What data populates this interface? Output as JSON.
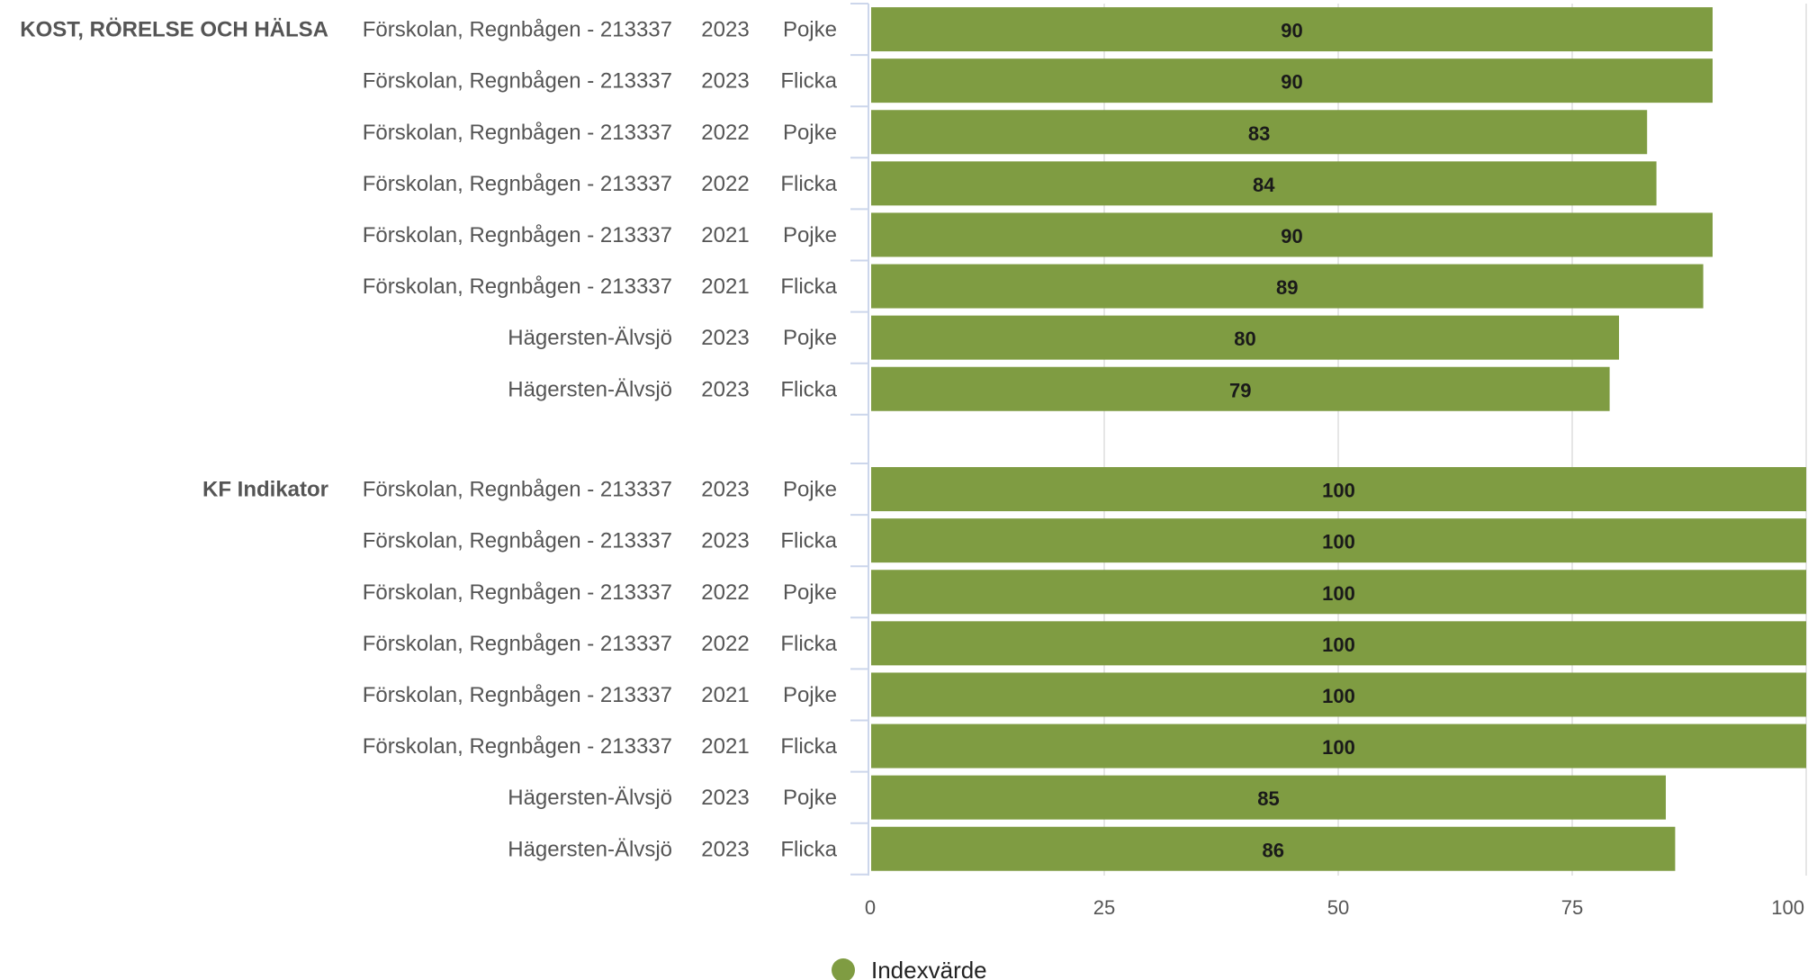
{
  "chart_data": {
    "type": "bar",
    "orientation": "horizontal",
    "xlim": [
      0,
      100
    ],
    "x_ticks": [
      "0",
      "25",
      "50",
      "75",
      "100"
    ],
    "grid": true,
    "legend": "bottom-center",
    "colors": {
      "bar": "#7f9c42",
      "grid": "#dddddd",
      "axis": "#ccd6eb",
      "text": "#555555"
    },
    "groups": [
      {
        "name": "KOST, RÖRELSE OCH HÄLSA",
        "rows": [
          {
            "unit": "Förskolan, Regnbågen - 213337",
            "year": "2023",
            "gender": "Pojke",
            "value": 90
          },
          {
            "unit": "Förskolan, Regnbågen - 213337",
            "year": "2023",
            "gender": "Flicka",
            "value": 90
          },
          {
            "unit": "Förskolan, Regnbågen - 213337",
            "year": "2022",
            "gender": "Pojke",
            "value": 83
          },
          {
            "unit": "Förskolan, Regnbågen - 213337",
            "year": "2022",
            "gender": "Flicka",
            "value": 84
          },
          {
            "unit": "Förskolan, Regnbågen - 213337",
            "year": "2021",
            "gender": "Pojke",
            "value": 90
          },
          {
            "unit": "Förskolan, Regnbågen - 213337",
            "year": "2021",
            "gender": "Flicka",
            "value": 89
          },
          {
            "unit": "Hägersten-Älvsjö",
            "year": "2023",
            "gender": "Pojke",
            "value": 80
          },
          {
            "unit": "Hägersten-Älvsjö",
            "year": "2023",
            "gender": "Flicka",
            "value": 79
          }
        ]
      },
      {
        "name": "KF Indikator",
        "rows": [
          {
            "unit": "Förskolan, Regnbågen - 213337",
            "year": "2023",
            "gender": "Pojke",
            "value": 100
          },
          {
            "unit": "Förskolan, Regnbågen - 213337",
            "year": "2023",
            "gender": "Flicka",
            "value": 100
          },
          {
            "unit": "Förskolan, Regnbågen - 213337",
            "year": "2022",
            "gender": "Pojke",
            "value": 100
          },
          {
            "unit": "Förskolan, Regnbågen - 213337",
            "year": "2022",
            "gender": "Flicka",
            "value": 100
          },
          {
            "unit": "Förskolan, Regnbågen - 213337",
            "year": "2021",
            "gender": "Pojke",
            "value": 100
          },
          {
            "unit": "Förskolan, Regnbågen - 213337",
            "year": "2021",
            "gender": "Flicka",
            "value": 100
          },
          {
            "unit": "Hägersten-Älvsjö",
            "year": "2023",
            "gender": "Pojke",
            "value": 85
          },
          {
            "unit": "Hägersten-Älvsjö",
            "year": "2023",
            "gender": "Flicka",
            "value": 86
          }
        ]
      }
    ],
    "series": [
      {
        "name": "Indexvärde"
      }
    ]
  }
}
